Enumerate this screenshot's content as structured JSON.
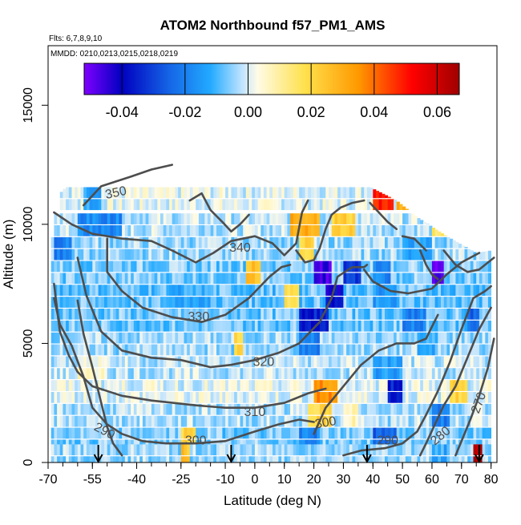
{
  "chart_data": {
    "type": "heatmap",
    "title": "ATOM2 Northbound f57_PM1_AMS",
    "subtitle_flights": "Flts: 6,7,8,9,10",
    "subtitle_dates": "MMDD: 0210,0213,0215,0218,0219",
    "xlabel": "Latitude (deg N)",
    "ylabel": "Altitude (m)",
    "xlim": [
      -70,
      82
    ],
    "ylim": [
      0,
      17500
    ],
    "x_ticks": [
      -70,
      -55,
      -40,
      -25,
      -10,
      0,
      10,
      20,
      30,
      40,
      50,
      60,
      70,
      80
    ],
    "x_tick_labels": [
      "-70",
      "-55",
      "-40",
      "-25",
      "-10",
      "0",
      "10",
      "20",
      "30",
      "40",
      "50",
      "60",
      "70",
      "80"
    ],
    "x_minor_step": 5,
    "y_ticks": [
      0,
      5000,
      10000,
      15000
    ],
    "y_tick_labels": [
      "0",
      "5000",
      "10000",
      "15000"
    ],
    "colorbar": {
      "range": [
        -0.052,
        0.067
      ],
      "ticks": [
        -0.04,
        -0.02,
        0.0,
        0.02,
        0.04,
        0.06
      ],
      "tick_labels": [
        "-0.04",
        "-0.02",
        "0.00",
        "0.02",
        "0.04",
        "0.06"
      ],
      "lines": [
        -0.04,
        -0.02,
        0.0,
        0.02,
        0.04,
        0.06
      ],
      "colors": [
        "#7f00ff",
        "#0000c0",
        "#1565e6",
        "#22aaff",
        "#bfe3ff",
        "#fffbe6",
        "#ffe14d",
        "#ff9900",
        "#ff0000",
        "#a00000"
      ],
      "stops": [
        -0.052,
        -0.04,
        -0.025,
        -0.012,
        -0.002,
        0.003,
        0.018,
        0.035,
        0.052,
        0.067
      ]
    },
    "grid": false,
    "legend": "colorbar top",
    "potential_temperature_contour_labels": [
      {
        "text": "350",
        "lat": -47,
        "alt": 11300,
        "rot": -12
      },
      {
        "text": "340",
        "lat": -5,
        "alt": 9000,
        "rot": 0
      },
      {
        "text": "330",
        "lat": -19,
        "alt": 6100,
        "rot": 0
      },
      {
        "text": "320",
        "lat": 3,
        "alt": 4200,
        "rot": 0
      },
      {
        "text": "310",
        "lat": 0,
        "alt": 2100,
        "rot": 0
      },
      {
        "text": "300",
        "lat": 24,
        "alt": 1650,
        "rot": -10
      },
      {
        "text": "300",
        "lat": -20,
        "alt": 900,
        "rot": 0
      },
      {
        "text": "290",
        "lat": -51,
        "alt": 1300,
        "rot": 28
      },
      {
        "text": "290",
        "lat": 45,
        "alt": 900,
        "rot": 0
      },
      {
        "text": "280",
        "lat": 63,
        "alt": 1100,
        "rot": -40
      },
      {
        "text": "270",
        "lat": 76,
        "alt": 2500,
        "rot": -70
      }
    ],
    "profile_arrow_latitudes": [
      -53,
      -8,
      38,
      76
    ],
    "data_top_altitude_by_lat": [
      [
        -68,
        10800
      ],
      [
        -66,
        11300
      ],
      [
        -62,
        11800
      ],
      [
        -58,
        12500
      ],
      [
        -40,
        12500
      ],
      [
        -25,
        12500
      ],
      [
        -10,
        12500
      ],
      [
        -5,
        13000
      ],
      [
        10,
        12500
      ],
      [
        30,
        12300
      ],
      [
        40,
        11500
      ],
      [
        48,
        11000
      ],
      [
        55,
        10300
      ],
      [
        65,
        9500
      ],
      [
        75,
        8800
      ],
      [
        80,
        8900
      ]
    ],
    "anomaly_bands": [
      {
        "alt": 11100,
        "latmin": -66,
        "latmax": 62,
        "base": 0.001,
        "spots": [
          [
            40,
            47,
            0.05
          ],
          [
            48,
            53,
            0.03
          ],
          [
            -58,
            -52,
            -0.012
          ]
        ]
      },
      {
        "alt": 10000,
        "latmin": -68,
        "latmax": 72,
        "base": -0.002,
        "spots": [
          [
            -60,
            -45,
            -0.018
          ],
          [
            12,
            22,
            0.03
          ],
          [
            26,
            34,
            0.022
          ],
          [
            60,
            65,
            0.015
          ]
        ]
      },
      {
        "alt": 9000,
        "latmin": -69,
        "latmax": 80,
        "base": -0.004,
        "spots": [
          [
            -68,
            -62,
            -0.02
          ],
          [
            15,
            20,
            0.02
          ],
          [
            50,
            60,
            -0.012
          ]
        ]
      },
      {
        "alt": 8000,
        "latmin": -69,
        "latmax": 80,
        "base": -0.006,
        "spots": [
          [
            -3,
            2,
            0.025
          ],
          [
            20,
            26,
            -0.045
          ],
          [
            30,
            36,
            -0.03
          ],
          [
            40,
            46,
            -0.018
          ],
          [
            60,
            64,
            -0.05
          ]
        ]
      },
      {
        "alt": 7000,
        "latmin": -69,
        "latmax": 80,
        "base": -0.008,
        "spots": [
          [
            -30,
            -15,
            -0.012
          ],
          [
            10,
            15,
            0.02
          ],
          [
            24,
            30,
            -0.04
          ],
          [
            40,
            48,
            -0.015
          ]
        ]
      },
      {
        "alt": 6000,
        "latmin": -69,
        "latmax": 80,
        "base": -0.007,
        "spots": [
          [
            15,
            25,
            -0.035
          ],
          [
            50,
            58,
            -0.02
          ],
          [
            72,
            76,
            -0.025
          ]
        ]
      },
      {
        "alt": 5000,
        "latmin": -69,
        "latmax": 80,
        "base": -0.004,
        "spots": [
          [
            -7,
            -4,
            0.02
          ],
          [
            15,
            22,
            -0.02
          ],
          [
            55,
            62,
            -0.012
          ]
        ]
      },
      {
        "alt": 4000,
        "latmin": -69,
        "latmax": 80,
        "base": -0.002,
        "spots": [
          [
            -60,
            -50,
            0.005
          ],
          [
            40,
            50,
            -0.014
          ]
        ]
      },
      {
        "alt": 3000,
        "latmin": -69,
        "latmax": 80,
        "base": 0.001,
        "spots": [
          [
            20,
            28,
            0.035
          ],
          [
            45,
            50,
            -0.035
          ],
          [
            66,
            72,
            0.02
          ]
        ]
      },
      {
        "alt": 2000,
        "latmin": -69,
        "latmax": 80,
        "base": -0.003,
        "spots": [
          [
            18,
            26,
            0.02
          ],
          [
            30,
            35,
            0.008
          ],
          [
            60,
            66,
            -0.02
          ]
        ]
      },
      {
        "alt": 1000,
        "latmin": -69,
        "latmax": 80,
        "base": -0.006,
        "spots": [
          [
            -25,
            -20,
            0.02
          ],
          [
            15,
            22,
            -0.02
          ],
          [
            40,
            48,
            -0.025
          ]
        ]
      },
      {
        "alt": 300,
        "latmin": -69,
        "latmax": 80,
        "base": -0.004,
        "spots": [
          [
            -25,
            -22,
            0.025
          ],
          [
            74,
            77,
            0.065
          ],
          [
            60,
            66,
            -0.012
          ]
        ]
      }
    ],
    "contours": [
      [
        [
          -58,
          10800
        ],
        [
          -52,
          11600
        ],
        [
          -42,
          12000
        ],
        [
          -35,
          12300
        ],
        [
          -28,
          12500
        ]
      ],
      [
        [
          -68,
          10500
        ],
        [
          -62,
          10000
        ],
        [
          -55,
          9600
        ],
        [
          -45,
          9400
        ],
        [
          -35,
          9300
        ],
        [
          -28,
          8900
        ],
        [
          -20,
          8400
        ],
        [
          -14,
          8800
        ],
        [
          -8,
          9300
        ],
        [
          0,
          9500
        ],
        [
          6,
          9200
        ],
        [
          10,
          8700
        ],
        [
          14,
          9200
        ],
        [
          16,
          10500
        ],
        [
          18,
          11000
        ]
      ],
      [
        [
          -22,
          11000
        ],
        [
          -18,
          11300
        ],
        [
          -15,
          10600
        ],
        [
          -11,
          10100
        ],
        [
          -8,
          9700
        ],
        [
          -5,
          10000
        ],
        [
          -2,
          10400
        ]
      ],
      [
        [
          14,
          8900
        ],
        [
          17,
          8400
        ],
        [
          20,
          8500
        ],
        [
          22,
          9000
        ],
        [
          24,
          9800
        ],
        [
          26,
          10400
        ],
        [
          29,
          10700
        ],
        [
          33,
          10900
        ],
        [
          37,
          11000
        ]
      ],
      [
        [
          -50,
          9400
        ],
        [
          -50,
          8000
        ],
        [
          -45,
          7200
        ],
        [
          -38,
          6500
        ],
        [
          -28,
          6100
        ],
        [
          -18,
          5900
        ],
        [
          -10,
          6200
        ],
        [
          -2,
          6900
        ],
        [
          5,
          7800
        ],
        [
          9,
          8200
        ],
        [
          12,
          8300
        ]
      ],
      [
        [
          -60,
          8600
        ],
        [
          -57,
          7000
        ],
        [
          -52,
          5500
        ],
        [
          -45,
          4700
        ],
        [
          -35,
          4400
        ],
        [
          -25,
          4300
        ],
        [
          -15,
          4000
        ],
        [
          -8,
          4100
        ],
        [
          0,
          4300
        ],
        [
          8,
          4600
        ],
        [
          15,
          5000
        ],
        [
          22,
          5900
        ],
        [
          26,
          6900
        ],
        [
          28,
          7800
        ],
        [
          33,
          8200
        ],
        [
          37,
          8200
        ],
        [
          38,
          8300
        ]
      ],
      [
        [
          -68,
          7500
        ],
        [
          -66,
          5500
        ],
        [
          -63,
          4500
        ],
        [
          -60,
          3800
        ],
        [
          -55,
          3200
        ],
        [
          -45,
          2800
        ],
        [
          -35,
          2600
        ],
        [
          -20,
          2400
        ],
        [
          -10,
          2300
        ],
        [
          0,
          2300
        ],
        [
          10,
          2500
        ],
        [
          18,
          2900
        ],
        [
          24,
          3100
        ]
      ],
      [
        [
          37,
          8100
        ],
        [
          40,
          7600
        ],
        [
          46,
          7200
        ],
        [
          52,
          7100
        ],
        [
          60,
          7300
        ],
        [
          65,
          7900
        ],
        [
          70,
          8400
        ],
        [
          73,
          8600
        ],
        [
          76,
          8800
        ]
      ],
      [
        [
          -68,
          6900
        ],
        [
          -66,
          5800
        ],
        [
          -62,
          4900
        ],
        [
          -58,
          3600
        ],
        [
          -55,
          2300
        ],
        [
          -50,
          1600
        ],
        [
          -45,
          1200
        ],
        [
          -38,
          900
        ],
        [
          -30,
          800
        ],
        [
          -20,
          800
        ],
        [
          -10,
          900
        ],
        [
          0,
          1300
        ],
        [
          8,
          1600
        ],
        [
          15,
          1800
        ],
        [
          20,
          1700
        ]
      ],
      [
        [
          -60,
          6800
        ],
        [
          -58,
          5400
        ],
        [
          -55,
          4000
        ],
        [
          -52,
          2500
        ],
        [
          -50,
          1500
        ],
        [
          -48,
          800
        ],
        [
          -45,
          300
        ]
      ],
      [
        [
          20,
          1200
        ],
        [
          24,
          2300
        ],
        [
          30,
          3200
        ],
        [
          36,
          4100
        ],
        [
          42,
          4700
        ],
        [
          48,
          5000
        ],
        [
          54,
          5000
        ],
        [
          58,
          5200
        ],
        [
          60,
          5700
        ],
        [
          62,
          6200
        ]
      ],
      [
        [
          30,
          300
        ],
        [
          36,
          500
        ],
        [
          44,
          600
        ],
        [
          50,
          800
        ],
        [
          55,
          1300
        ],
        [
          58,
          2000
        ],
        [
          62,
          3000
        ],
        [
          66,
          4200
        ],
        [
          70,
          5600
        ],
        [
          74,
          6900
        ],
        [
          78,
          7200
        ],
        [
          80,
          7400
        ]
      ],
      [
        [
          56,
          300
        ],
        [
          58,
          800
        ],
        [
          61,
          1600
        ],
        [
          64,
          2400
        ],
        [
          68,
          3200
        ],
        [
          72,
          4400
        ],
        [
          76,
          5600
        ],
        [
          80,
          6500
        ]
      ],
      [
        [
          68,
          300
        ],
        [
          70,
          900
        ],
        [
          73,
          1800
        ],
        [
          76,
          2800
        ],
        [
          79,
          4000
        ],
        [
          81,
          5200
        ]
      ],
      [
        [
          64,
          8900
        ],
        [
          68,
          8300
        ],
        [
          72,
          8000
        ],
        [
          76,
          8100
        ],
        [
          79,
          8400
        ],
        [
          81,
          8600
        ]
      ],
      [
        [
          56,
          8900
        ],
        [
          58,
          8300
        ],
        [
          60,
          7900
        ],
        [
          62,
          7700
        ]
      ],
      [
        [
          50,
          9500
        ],
        [
          54,
          9400
        ],
        [
          58,
          8900
        ]
      ],
      [
        [
          39,
          10900
        ],
        [
          42,
          10500
        ],
        [
          45,
          10100
        ],
        [
          48,
          9800
        ]
      ]
    ]
  }
}
